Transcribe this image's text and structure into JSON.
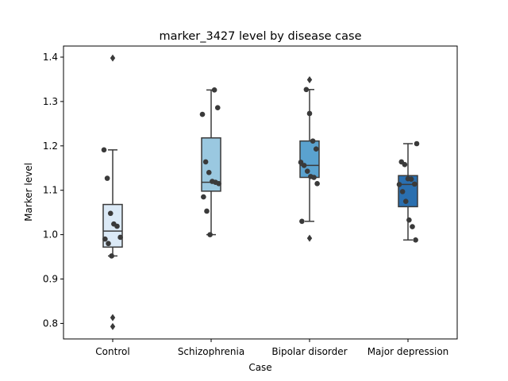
{
  "chart_data": {
    "type": "boxplot",
    "title": "marker_3427 level by disease case",
    "xlabel": "Case",
    "ylabel": "Marker level",
    "ylim": [
      0.765,
      1.425
    ],
    "yticks": [
      "0.8",
      "0.9",
      "1.0",
      "1.1",
      "1.2",
      "1.3",
      "1.4"
    ],
    "grid": false,
    "legend": "none",
    "point_color": "#3a3a3a",
    "line_color": "#3a3a3a",
    "groups": [
      {
        "category": "Control",
        "color": "#dbe9f6",
        "q1": 0.972,
        "median": 1.008,
        "q3": 1.068,
        "whisker_low": 0.952,
        "whisker_high": 1.191,
        "outliers": [
          1.398,
          0.813,
          0.793
        ],
        "points": [
          1.191,
          1.127,
          1.048,
          1.024,
          1.019,
          0.994,
          0.99,
          0.98,
          0.952
        ]
      },
      {
        "category": "Schizophrenia",
        "color": "#9ac8e0",
        "q1": 1.098,
        "median": 1.118,
        "q3": 1.218,
        "whisker_low": 1.0,
        "whisker_high": 1.326,
        "outliers": [],
        "points": [
          1.326,
          1.286,
          1.271,
          1.164,
          1.14,
          1.12,
          1.118,
          1.115,
          1.085,
          1.053,
          1.0
        ]
      },
      {
        "category": "Bipolar disorder",
        "color": "#5aa2cf",
        "q1": 1.129,
        "median": 1.156,
        "q3": 1.211,
        "whisker_low": 1.03,
        "whisker_high": 1.327,
        "outliers": [
          1.349,
          0.992
        ],
        "points": [
          1.327,
          1.273,
          1.211,
          1.193,
          1.163,
          1.156,
          1.143,
          1.131,
          1.129,
          1.115,
          1.03
        ]
      },
      {
        "category": "Major depression",
        "color": "#2a6faf",
        "q1": 1.063,
        "median": 1.113,
        "q3": 1.133,
        "whisker_low": 0.988,
        "whisker_high": 1.205,
        "outliers": [],
        "points": [
          1.205,
          1.164,
          1.158,
          1.126,
          1.125,
          1.114,
          1.113,
          1.097,
          1.075,
          1.033,
          1.018,
          0.988
        ]
      }
    ]
  }
}
